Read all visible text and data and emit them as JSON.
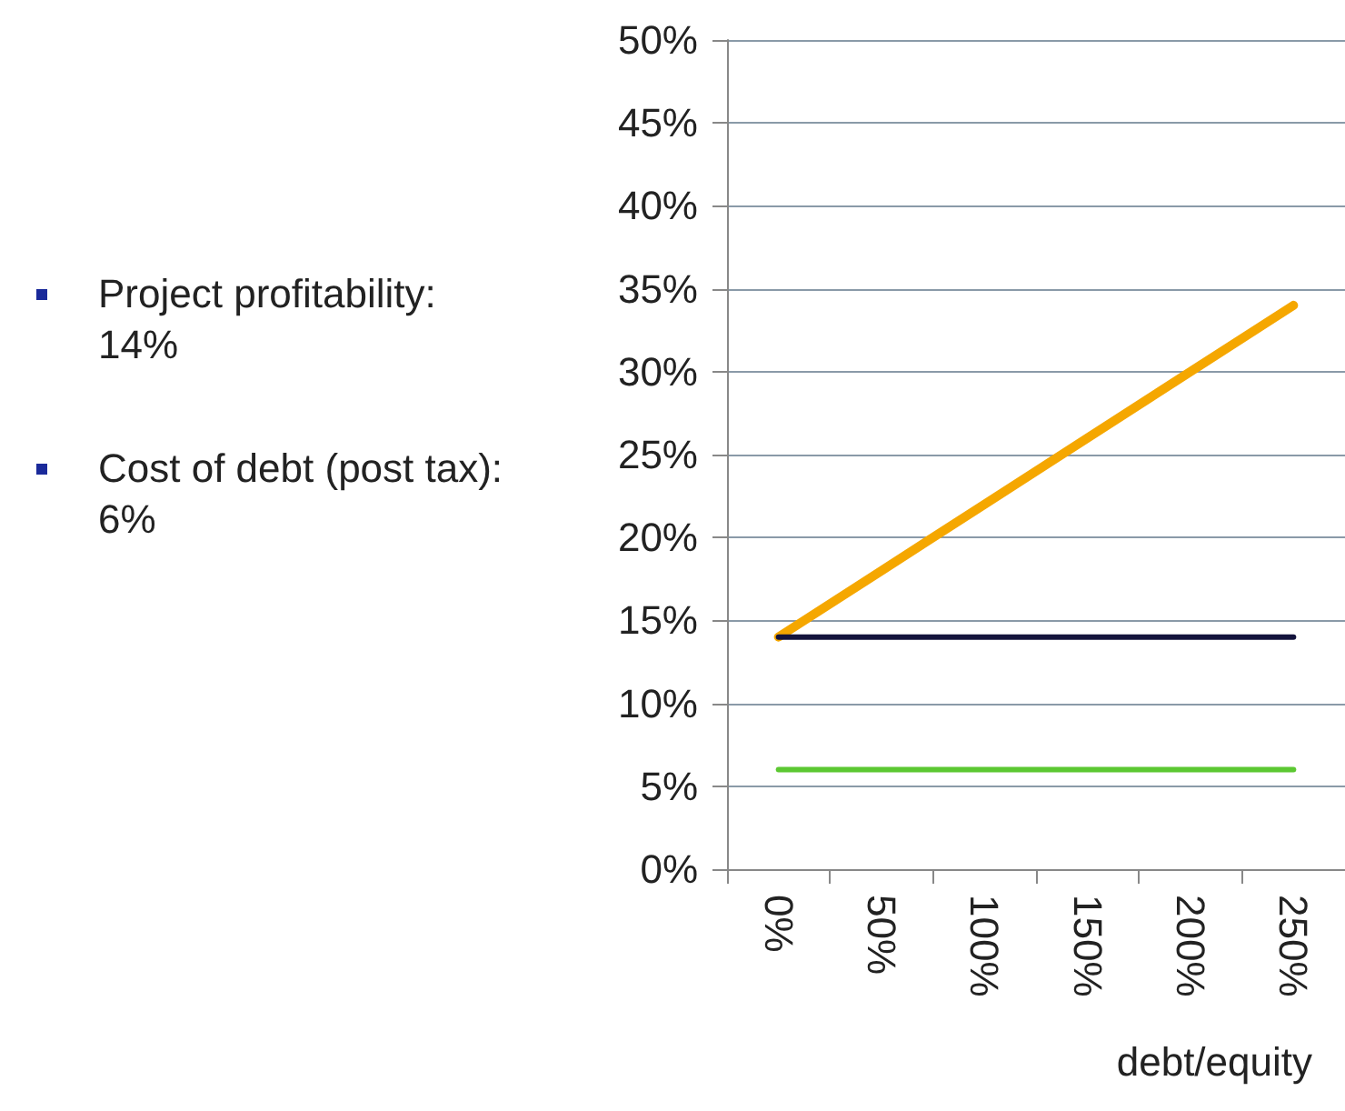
{
  "chart_data": {
    "type": "line",
    "xlabel": "debt/equity",
    "categories": [
      "0%",
      "50%",
      "100%",
      "150%",
      "200%",
      "250%"
    ],
    "series": [
      {
        "color": "#f5a700",
        "values": [
          14,
          18,
          22,
          26,
          30,
          34
        ]
      },
      {
        "color": "#14143c",
        "values": [
          14,
          14,
          14,
          14,
          14,
          14
        ]
      },
      {
        "color": "#5cc832",
        "values": [
          6,
          6,
          6,
          6,
          6,
          6
        ]
      }
    ],
    "ylim": [
      0,
      50
    ],
    "yticks": [
      {
        "value": 0,
        "label": "0%"
      },
      {
        "value": 5,
        "label": "5%"
      },
      {
        "value": 10,
        "label": "10%"
      },
      {
        "value": 15,
        "label": "15%"
      },
      {
        "value": 20,
        "label": "20%"
      },
      {
        "value": 25,
        "label": "25%"
      },
      {
        "value": 30,
        "label": "30%"
      },
      {
        "value": 35,
        "label": "35%"
      },
      {
        "value": 40,
        "label": "40%"
      },
      {
        "value": 45,
        "label": "45%"
      },
      {
        "value": 50,
        "label": "50%"
      }
    ],
    "grid": "y",
    "marker": "none",
    "line_style": "solid",
    "annotations": [
      "Project profitability: 14%",
      "Cost of debt (post tax): 6%"
    ]
  }
}
